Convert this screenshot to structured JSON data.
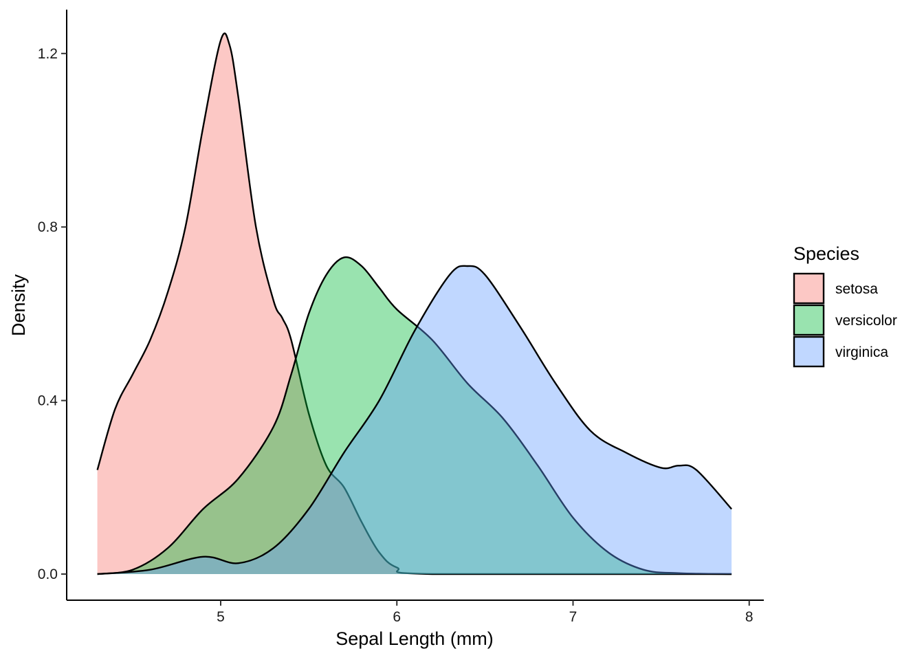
{
  "chart_data": {
    "type": "area",
    "xlabel": "Sepal Length (mm)",
    "ylabel": "Density",
    "xlim": [
      4.3,
      7.9
    ],
    "ylim": [
      0,
      1.25
    ],
    "x_ticks": [
      5,
      6,
      7,
      8
    ],
    "y_ticks": [
      0.0,
      0.4,
      0.8,
      1.2
    ],
    "y_tick_labels": [
      "0.0",
      "0.4",
      "0.8",
      "1.2"
    ],
    "grid": false,
    "legend_title": "Species",
    "legend_position": "right",
    "series": [
      {
        "name": "setosa",
        "color": "#F8766D",
        "x": [
          4.3,
          4.4,
          4.5,
          4.6,
          4.7,
          4.8,
          4.9,
          5.0,
          5.05,
          5.1,
          5.2,
          5.3,
          5.35,
          5.4,
          5.5,
          5.6,
          5.7,
          5.8,
          5.9,
          6.0,
          6.2,
          7.9
        ],
        "y": [
          0.24,
          0.38,
          0.46,
          0.54,
          0.65,
          0.8,
          1.03,
          1.23,
          1.22,
          1.1,
          0.8,
          0.63,
          0.59,
          0.54,
          0.37,
          0.25,
          0.2,
          0.12,
          0.05,
          0.015,
          0.0,
          0.0
        ]
      },
      {
        "name": "versicolor",
        "color": "#00BA38",
        "x": [
          4.3,
          4.5,
          4.7,
          4.9,
          5.1,
          5.3,
          5.4,
          5.5,
          5.6,
          5.7,
          5.8,
          5.9,
          6.0,
          6.2,
          6.4,
          6.6,
          6.8,
          7.0,
          7.2,
          7.4,
          7.6,
          7.9
        ],
        "y": [
          0.0,
          0.01,
          0.06,
          0.15,
          0.22,
          0.34,
          0.46,
          0.6,
          0.69,
          0.73,
          0.71,
          0.66,
          0.61,
          0.54,
          0.44,
          0.36,
          0.25,
          0.13,
          0.05,
          0.01,
          0.002,
          0.0
        ]
      },
      {
        "name": "virginica",
        "color": "#619CFF",
        "x": [
          4.3,
          4.6,
          4.9,
          5.1,
          5.3,
          5.5,
          5.7,
          5.9,
          6.1,
          6.3,
          6.4,
          6.5,
          6.7,
          6.9,
          7.1,
          7.3,
          7.5,
          7.6,
          7.7,
          7.9
        ],
        "y": [
          0.0,
          0.01,
          0.04,
          0.025,
          0.06,
          0.15,
          0.28,
          0.4,
          0.56,
          0.69,
          0.71,
          0.69,
          0.57,
          0.44,
          0.33,
          0.28,
          0.245,
          0.25,
          0.24,
          0.15
        ]
      }
    ]
  }
}
